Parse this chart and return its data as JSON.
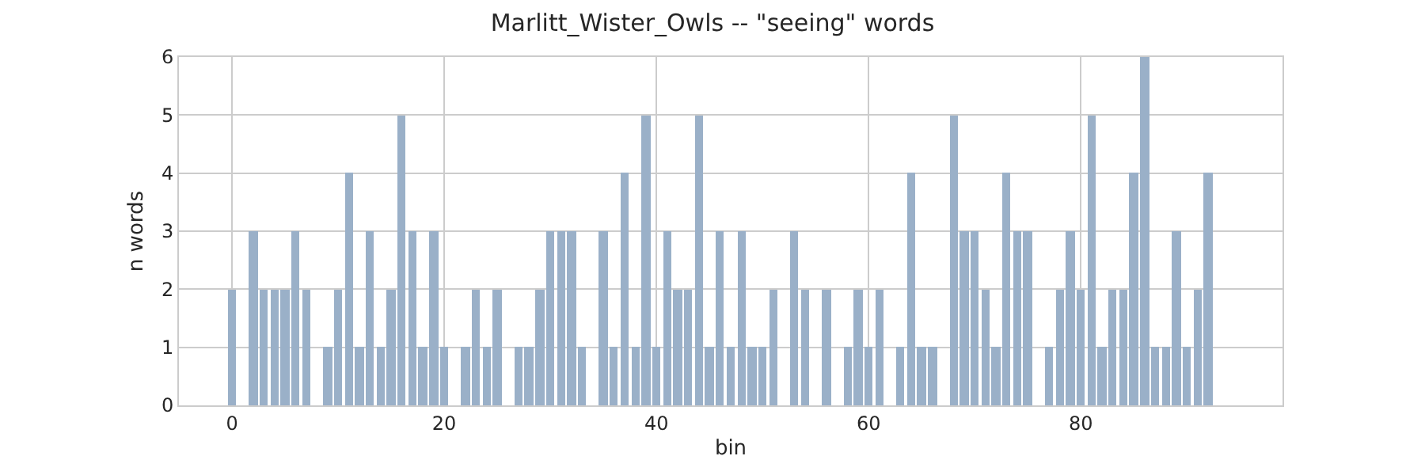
{
  "chart_data": {
    "type": "bar",
    "title": "Marlitt_Wister_Owls -- \"seeing\" words",
    "xlabel": "bin",
    "ylabel": "n words",
    "x": [
      0,
      1,
      2,
      3,
      4,
      5,
      6,
      7,
      8,
      9,
      10,
      11,
      12,
      13,
      14,
      15,
      16,
      17,
      18,
      19,
      20,
      21,
      22,
      23,
      24,
      25,
      26,
      27,
      28,
      29,
      30,
      31,
      32,
      33,
      34,
      35,
      36,
      37,
      38,
      39,
      40,
      41,
      42,
      43,
      44,
      45,
      46,
      47,
      48,
      49,
      50,
      51,
      52,
      53,
      54,
      55,
      56,
      57,
      58,
      59,
      60,
      61,
      62,
      63,
      64,
      65,
      66,
      67,
      68,
      69,
      70,
      71,
      72,
      73,
      74,
      75,
      76,
      77,
      78,
      79,
      80,
      81,
      82,
      83,
      84,
      85,
      86,
      87,
      88,
      89,
      90,
      91,
      92
    ],
    "values": [
      2,
      0,
      3,
      2,
      2,
      2,
      3,
      2,
      0,
      1,
      2,
      4,
      1,
      3,
      1,
      2,
      5,
      3,
      1,
      3,
      1,
      0,
      1,
      2,
      1,
      2,
      0,
      1,
      1,
      2,
      3,
      3,
      3,
      1,
      0,
      3,
      1,
      4,
      1,
      5,
      1,
      3,
      2,
      2,
      5,
      1,
      3,
      1,
      3,
      1,
      1,
      2,
      0,
      3,
      2,
      0,
      2,
      0,
      1,
      2,
      1,
      2,
      0,
      1,
      4,
      1,
      1,
      0,
      5,
      3,
      3,
      2,
      1,
      4,
      3,
      3,
      0,
      1,
      2,
      3,
      2,
      5,
      1,
      2,
      2,
      4,
      6,
      1,
      1,
      3,
      1,
      2,
      4
    ],
    "color": "#9ab0c8",
    "xlim": [
      -5,
      99
    ],
    "xticks": [
      0,
      20,
      40,
      60,
      80
    ],
    "ylim": [
      0,
      6
    ],
    "yticks": [
      0,
      1,
      2,
      3,
      4,
      5,
      6
    ],
    "grid": true
  }
}
